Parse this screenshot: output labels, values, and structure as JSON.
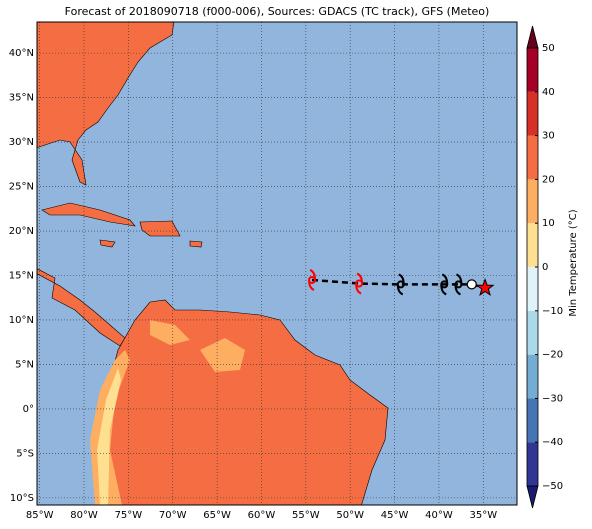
{
  "title": "Forecast of 2018090718 (f000-006), Sources: GDACS (TC track), GFS (Meteo)",
  "map": {
    "xlim": [
      -85.3,
      -31.2
    ],
    "ylim": [
      -10.8,
      43.5
    ],
    "xticks": [
      {
        "value": -85,
        "label": "85°W"
      },
      {
        "value": -80,
        "label": "80°W"
      },
      {
        "value": -75,
        "label": "75°W"
      },
      {
        "value": -70,
        "label": "70°W"
      },
      {
        "value": -65,
        "label": "65°W"
      },
      {
        "value": -60,
        "label": "60°W"
      },
      {
        "value": -55,
        "label": "55°W"
      },
      {
        "value": -50,
        "label": "50°W"
      },
      {
        "value": -45,
        "label": "45°W"
      },
      {
        "value": -40,
        "label": "40°W"
      },
      {
        "value": -35,
        "label": "35°W"
      }
    ],
    "yticks": [
      {
        "value": 40,
        "label": "40°N"
      },
      {
        "value": 35,
        "label": "35°N"
      },
      {
        "value": 30,
        "label": "30°N"
      },
      {
        "value": 25,
        "label": "25°N"
      },
      {
        "value": 20,
        "label": "20°N"
      },
      {
        "value": 15,
        "label": "15°N"
      },
      {
        "value": 10,
        "label": "10°N"
      },
      {
        "value": 5,
        "label": "5°N"
      },
      {
        "value": 0,
        "label": "0°"
      },
      {
        "value": -5,
        "label": "5°S"
      },
      {
        "value": -10,
        "label": "10°S"
      }
    ],
    "grid": true,
    "track": {
      "lon": [
        -54.3,
        -49.0,
        -44.3,
        -39.4,
        -37.8,
        -36.3,
        -34.8
      ],
      "lat": [
        14.5,
        14.1,
        14.0,
        14.0,
        14.0,
        14.0,
        13.6
      ],
      "marker": [
        "storm",
        "storm",
        "storm",
        "storm",
        "storm",
        "circle",
        "star"
      ],
      "color": [
        "#ff0000",
        "#ff0000",
        "#000000",
        "#000000",
        "#000000",
        "#ffffff",
        "#ff0000"
      ]
    }
  },
  "colorbar": {
    "label": "Min Temperature (°C)",
    "ticks": [
      -50,
      -40,
      -30,
      -20,
      -10,
      0,
      10,
      20,
      30,
      40,
      50
    ],
    "tick_labels": [
      "−50",
      "−40",
      "−30",
      "−20",
      "−10",
      "0",
      "10",
      "20",
      "30",
      "40",
      "50"
    ],
    "colors": [
      "#313695",
      "#4575b4",
      "#74add1",
      "#abd9e9",
      "#e0f3f8",
      "#fee090",
      "#fdae61",
      "#f46d43",
      "#d73027",
      "#a50026"
    ],
    "under_color": "#1a1a6e",
    "over_color": "#67001f"
  }
}
